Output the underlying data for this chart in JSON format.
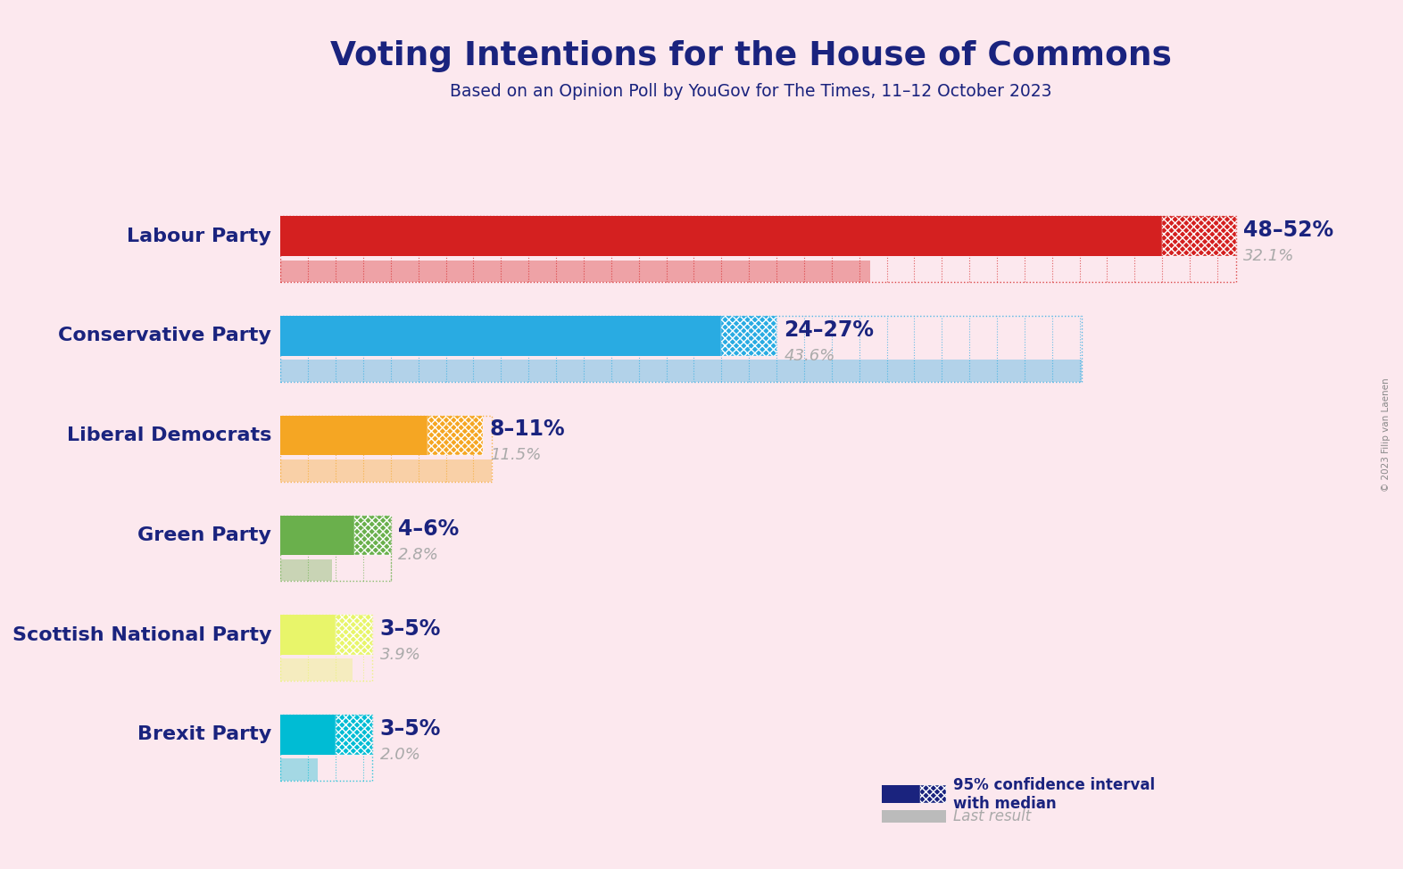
{
  "title": "Voting Intentions for the House of Commons",
  "subtitle": "Based on an Opinion Poll by YouGov for The Times, 11–12 October 2023",
  "background_color": "#fce8ee",
  "parties": [
    {
      "name": "Labour Party",
      "ci_low": 48,
      "ci_high": 52,
      "last_result": 32.1,
      "color": "#d42020",
      "label": "48–52%",
      "last_label": "32.1%"
    },
    {
      "name": "Conservative Party",
      "ci_low": 24,
      "ci_high": 27,
      "last_result": 43.6,
      "color": "#29abe2",
      "label": "24–27%",
      "last_label": "43.6%"
    },
    {
      "name": "Liberal Democrats",
      "ci_low": 8,
      "ci_high": 11,
      "last_result": 11.5,
      "color": "#f5a623",
      "label": "8–11%",
      "last_label": "11.5%"
    },
    {
      "name": "Green Party",
      "ci_low": 4,
      "ci_high": 6,
      "last_result": 2.8,
      "color": "#6ab04c",
      "label": "4–6%",
      "last_label": "2.8%"
    },
    {
      "name": "Scottish National Party",
      "ci_low": 3,
      "ci_high": 5,
      "last_result": 3.9,
      "color": "#e8f56a",
      "label": "3–5%",
      "last_label": "3.9%"
    },
    {
      "name": "Brexit Party",
      "ci_low": 3,
      "ci_high": 5,
      "last_result": 2.0,
      "color": "#00bcd4",
      "label": "3–5%",
      "last_label": "2.0%"
    }
  ],
  "xlim_max": 55,
  "title_color": "#1a237e",
  "subtitle_color": "#1a237e",
  "label_color": "#1a237e",
  "last_label_color": "#aaaaaa",
  "legend_ci_color": "#1a237e",
  "legend_last_color": "#bbbbbb",
  "copyright": "© 2023 Filip van Laenen"
}
